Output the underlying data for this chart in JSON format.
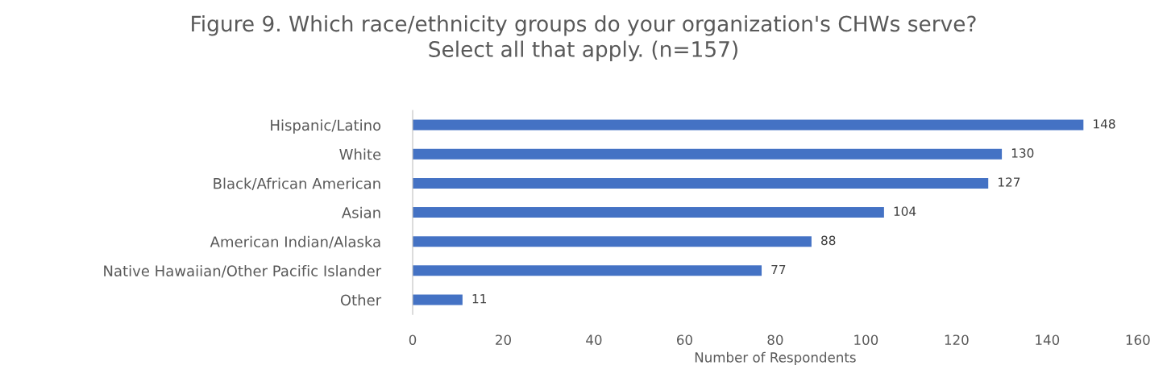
{
  "chart_data": {
    "type": "bar",
    "orientation": "horizontal",
    "title": "Figure 9. Which race/ethnicity groups do your organization's CHWs serve?\nSelect all that apply. (n=157)",
    "xlabel": "Number of Respondents",
    "categories": [
      "Hispanic/Latino",
      "White",
      "Black/African American",
      "Asian",
      "American Indian/Alaska",
      "Native Hawaiian/Other Pacific Islander",
      "Other"
    ],
    "values": [
      148,
      130,
      127,
      104,
      88,
      77,
      11
    ],
    "color": "#4472c4",
    "xlim": [
      0,
      160
    ],
    "xticks": [
      0,
      20,
      40,
      60,
      80,
      100,
      120,
      140,
      160
    ],
    "data_labels": true,
    "grid": false,
    "legend": false
  }
}
